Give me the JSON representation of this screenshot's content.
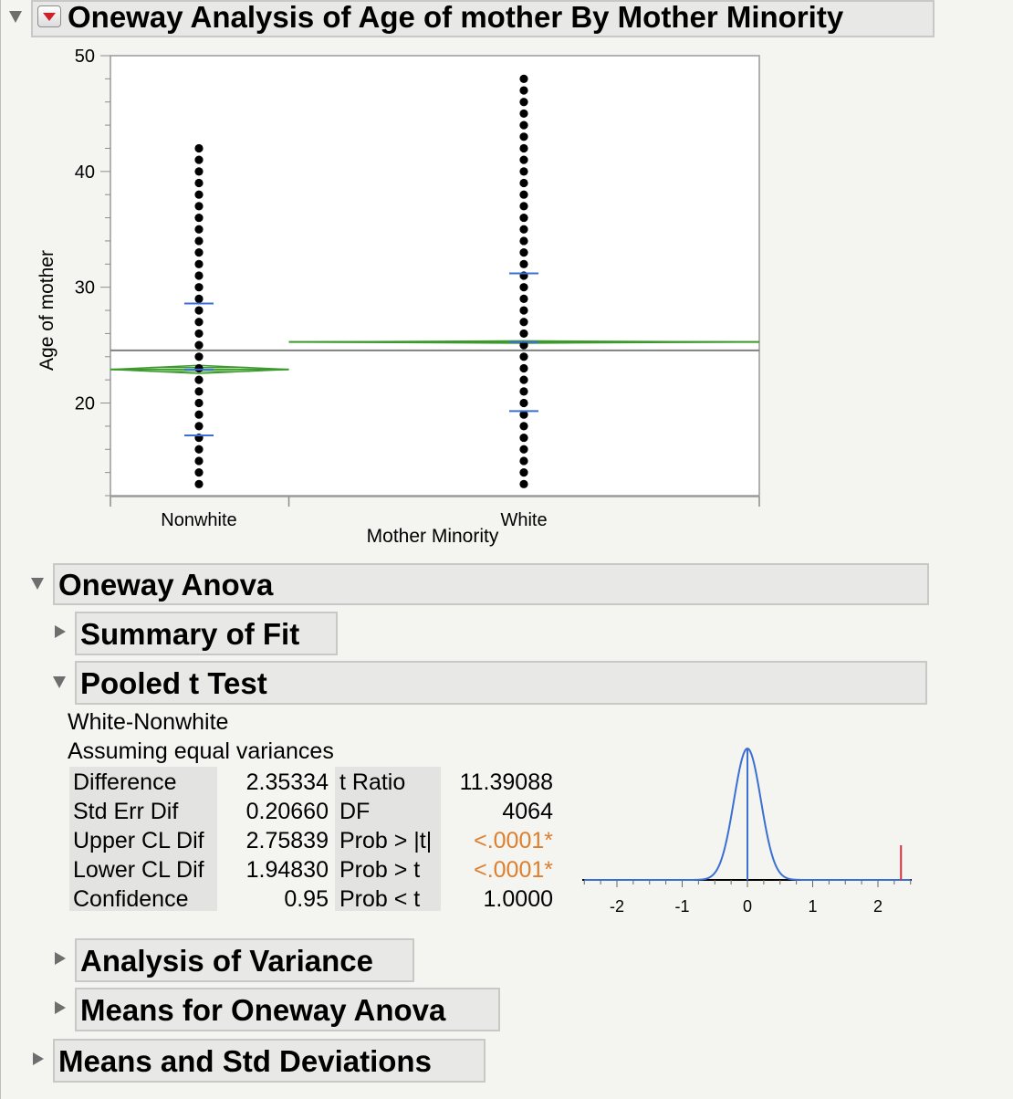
{
  "report": {
    "title": "Oneway Analysis of Age of mother By Mother Minority"
  },
  "chart_data": {
    "type": "scatter",
    "subtype": "oneway means diamonds",
    "title": "",
    "xlabel": "Mother Minority",
    "ylabel": "Age of mother",
    "categories": [
      "Nonwhite",
      "White"
    ],
    "ylim": [
      12,
      50
    ],
    "y_ticks": [
      "50",
      "40",
      "30",
      "20"
    ],
    "grand_mean": 24.55,
    "groups": [
      {
        "name": "Nonwhite",
        "y_min": 13,
        "y_max": 42,
        "mean": 22.9,
        "std_dev_upper": 28.6,
        "std_dev_lower": 17.2,
        "diamond_halfheight": 0.35,
        "width_share": 0.275
      },
      {
        "name": "White",
        "y_min": 13,
        "y_max": 48,
        "mean": 25.27,
        "std_dev_upper": 31.2,
        "std_dev_lower": 19.3,
        "diamond_halfheight": 0.1,
        "width_share": 0.725
      }
    ],
    "colors": {
      "points": "#000000",
      "diamond": "#3c9a2c",
      "std_dev": "#3b6fd4",
      "grand_mean": "#808080"
    }
  },
  "sections": {
    "oneway_anova": "Oneway Anova",
    "summary_of_fit": "Summary of Fit",
    "pooled_t_test": "Pooled t Test",
    "analysis_of_variance": "Analysis of Variance",
    "means_for_oneway": "Means for Oneway Anova",
    "means_std_dev": "Means and Std Deviations"
  },
  "ttest": {
    "comparison": "White-Nonwhite",
    "assumption": "Assuming equal variances",
    "left_labels": [
      "Difference",
      "Std Err Dif",
      "Upper CL Dif",
      "Lower CL Dif",
      "Confidence"
    ],
    "left_values": [
      "2.35334",
      "0.20660",
      "2.75839",
      "1.94830",
      "0.95"
    ],
    "right_labels": [
      "t Ratio",
      "DF",
      "Prob > |t|",
      "Prob > t",
      "Prob < t"
    ],
    "right_values": [
      "11.39088",
      "4064",
      "<.0001*",
      "<.0001*",
      "1.0000"
    ],
    "highlight_color": "#dd7f2e"
  },
  "density_plot": {
    "x_ticks": [
      "-2",
      "-1",
      "0",
      "1",
      "2"
    ],
    "xlim": [
      -2.5,
      2.5
    ],
    "std_err": 0.2066,
    "observed_difference": 2.35334,
    "curve_color": "#3b6fd4",
    "marker_color": "#d03040"
  }
}
